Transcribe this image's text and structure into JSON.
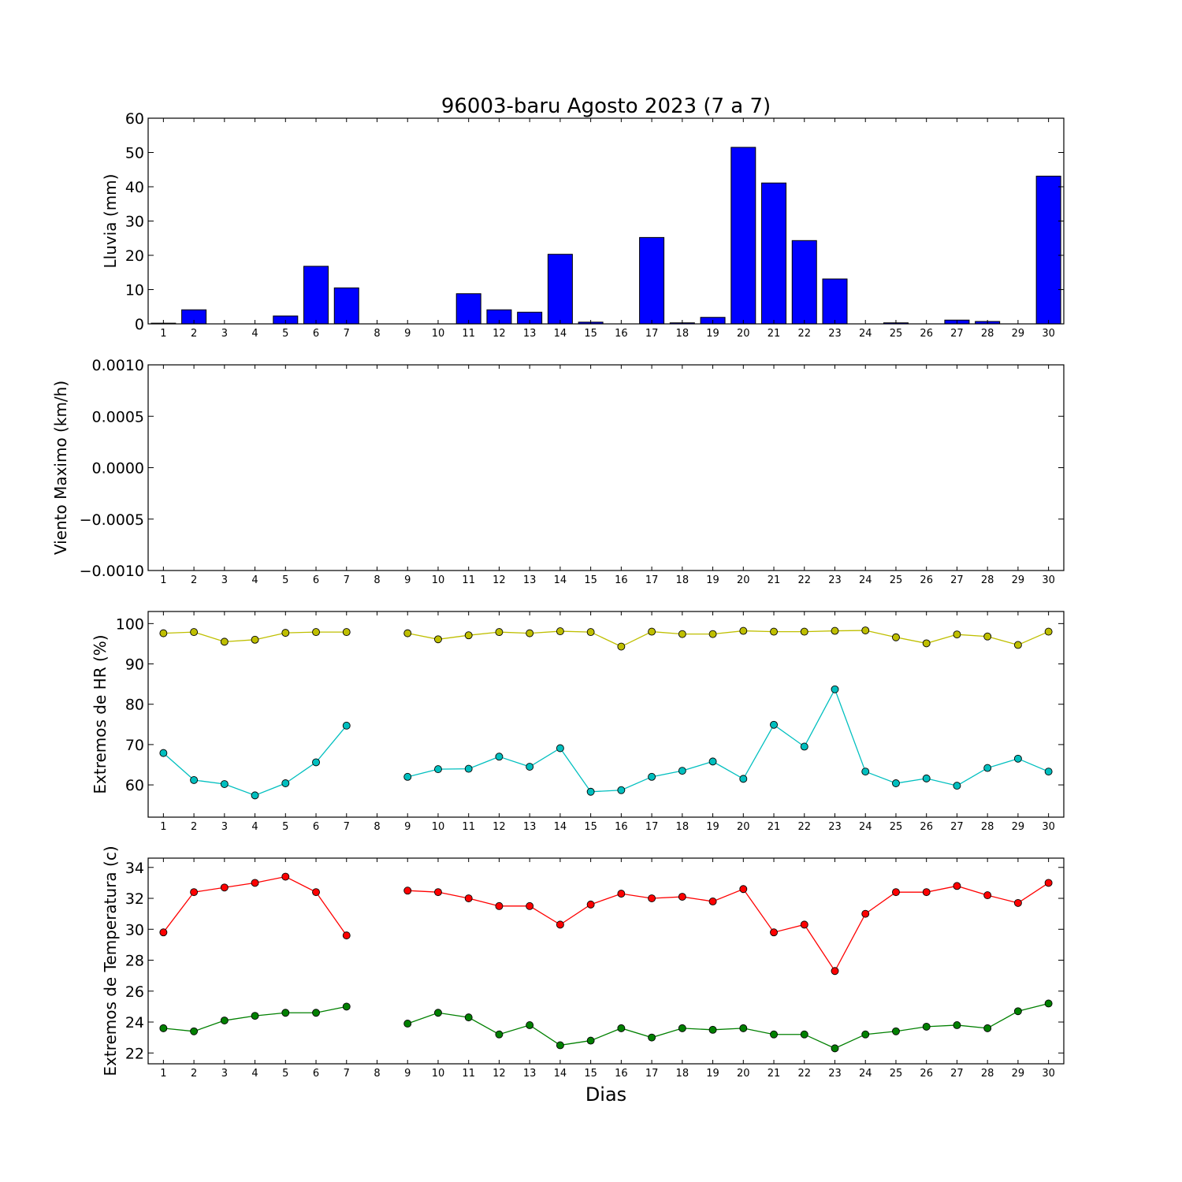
{
  "title": "96003-baru Agosto 2023  (7 a 7)",
  "xlabel": "Dias",
  "days": [
    1,
    2,
    3,
    4,
    5,
    6,
    7,
    8,
    9,
    10,
    11,
    12,
    13,
    14,
    15,
    16,
    17,
    18,
    19,
    20,
    21,
    22,
    23,
    24,
    25,
    26,
    27,
    28,
    29,
    30
  ],
  "colors": {
    "rain_bar": "#0000ff",
    "hr_max": "#bfbf00",
    "hr_min": "#00bfbf",
    "temp_max": "#ff0000",
    "temp_min": "#008000"
  },
  "chart_data": [
    {
      "type": "bar",
      "ylabel": "Lluvia (mm)",
      "ylim": [
        0,
        60
      ],
      "yticks": [
        0,
        10,
        20,
        30,
        40,
        50,
        60
      ],
      "xlim": [
        0.5,
        30.5
      ],
      "categories": [
        1,
        2,
        3,
        4,
        5,
        6,
        7,
        8,
        9,
        10,
        11,
        12,
        13,
        14,
        15,
        16,
        17,
        18,
        19,
        20,
        21,
        22,
        23,
        24,
        25,
        26,
        27,
        28,
        29,
        30
      ],
      "values": [
        0.2,
        4.1,
        0,
        0,
        2.3,
        16.8,
        10.5,
        0,
        0,
        0,
        8.8,
        4.1,
        3.4,
        20.3,
        0.5,
        0,
        25.2,
        0.3,
        1.9,
        51.5,
        41.1,
        24.3,
        13.1,
        0,
        0.3,
        0,
        1.1,
        0.7,
        0,
        43.1
      ],
      "color": "#0000ff"
    },
    {
      "type": "line",
      "ylabel": "Viento Maximo (km/h)",
      "ylim": [
        -0.001,
        0.001
      ],
      "yticks": [
        "0.0010",
        "0.0005",
        "0.0000",
        "−0.0005",
        "−0.0010"
      ],
      "ytick_values": [
        0.001,
        0.0005,
        0,
        -0.0005,
        -0.001
      ],
      "xlim": [
        0.5,
        30.5
      ],
      "series": []
    },
    {
      "type": "line",
      "ylabel": "Extremos de HR (%)",
      "ylim": [
        52,
        103
      ],
      "yticks": [
        60,
        70,
        80,
        90,
        100
      ],
      "xlim": [
        0.5,
        30.5
      ],
      "x": [
        1,
        2,
        3,
        4,
        5,
        6,
        7,
        8,
        9,
        10,
        11,
        12,
        13,
        14,
        15,
        16,
        17,
        18,
        19,
        20,
        21,
        22,
        23,
        24,
        25,
        26,
        27,
        28,
        29,
        30
      ],
      "series": [
        {
          "color": "#bfbf00",
          "values": [
            97.6,
            97.9,
            95.5,
            96.0,
            97.7,
            97.9,
            97.9,
            null,
            97.6,
            96.1,
            97.1,
            97.9,
            97.6,
            98.1,
            97.9,
            94.3,
            98.0,
            97.4,
            97.4,
            98.2,
            98.0,
            98.0,
            98.2,
            98.3,
            96.6,
            95.1,
            97.3,
            96.8,
            94.7,
            98.0
          ]
        },
        {
          "color": "#00bfbf",
          "values": [
            67.9,
            61.2,
            60.2,
            57.4,
            60.4,
            65.6,
            74.7,
            null,
            62.0,
            63.9,
            64.0,
            67.0,
            64.5,
            69.1,
            58.3,
            58.7,
            62.0,
            63.5,
            65.8,
            61.5,
            74.9,
            69.5,
            83.7,
            63.3,
            60.4,
            61.6,
            59.8,
            64.2,
            66.5,
            63.3
          ]
        }
      ]
    },
    {
      "type": "line",
      "ylabel": "Extremos de Temperatura (c)",
      "ylim": [
        21.3,
        34.6
      ],
      "yticks": [
        22,
        24,
        26,
        28,
        30,
        32,
        34
      ],
      "xlim": [
        0.5,
        30.5
      ],
      "x": [
        1,
        2,
        3,
        4,
        5,
        6,
        7,
        8,
        9,
        10,
        11,
        12,
        13,
        14,
        15,
        16,
        17,
        18,
        19,
        20,
        21,
        22,
        23,
        24,
        25,
        26,
        27,
        28,
        29,
        30
      ],
      "series": [
        {
          "color": "#ff0000",
          "values": [
            29.8,
            32.4,
            32.7,
            33.0,
            33.4,
            32.4,
            29.6,
            null,
            32.5,
            32.4,
            32.0,
            31.5,
            31.5,
            30.3,
            31.6,
            32.3,
            32.0,
            32.1,
            31.8,
            32.6,
            29.8,
            30.3,
            27.3,
            31.0,
            32.4,
            32.4,
            32.8,
            32.2,
            31.7,
            33.0
          ]
        },
        {
          "color": "#008000",
          "values": [
            23.6,
            23.4,
            24.1,
            24.4,
            24.6,
            24.6,
            25.0,
            null,
            23.9,
            24.6,
            24.3,
            23.2,
            23.8,
            22.5,
            22.8,
            23.6,
            23.0,
            23.6,
            23.5,
            23.6,
            23.2,
            23.2,
            22.3,
            23.2,
            23.4,
            23.7,
            23.8,
            23.6,
            24.7,
            25.2
          ]
        }
      ]
    }
  ]
}
